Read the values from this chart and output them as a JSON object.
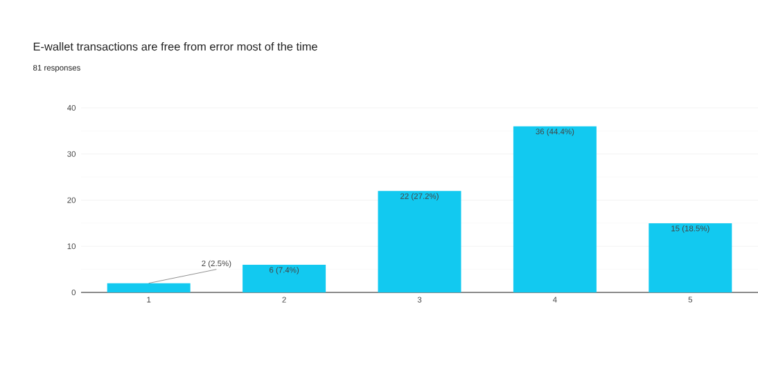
{
  "chart_data": {
    "type": "bar",
    "title": "E-wallet transactions are free from error most of the time",
    "subtitle": "81 responses",
    "categories": [
      "1",
      "2",
      "3",
      "4",
      "5"
    ],
    "values": [
      2,
      6,
      22,
      36,
      15
    ],
    "value_labels": [
      "2 (2.5%)",
      "6 (7.4%)",
      "22 (27.2%)",
      "36 (44.4%)",
      "15 (18.5%)"
    ],
    "color": "#12c9f0",
    "ylim": [
      0,
      40
    ],
    "yticks": [
      0,
      10,
      20,
      30,
      40
    ],
    "grid": "y"
  }
}
